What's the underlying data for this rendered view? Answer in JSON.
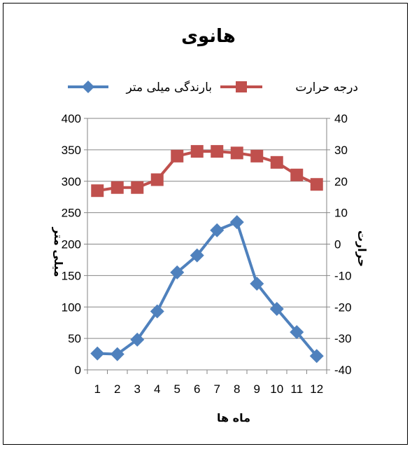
{
  "chart_data": {
    "type": "line",
    "title": "هانوی",
    "xlabel": "ماه ها",
    "ylabel_left": "میلی متر",
    "ylabel_right": "حرارت",
    "categories": [
      "1",
      "2",
      "3",
      "4",
      "5",
      "6",
      "7",
      "8",
      "9",
      "10",
      "11",
      "12"
    ],
    "ylim_left": [
      0,
      400
    ],
    "yticks_left": [
      "0",
      "50",
      "100",
      "150",
      "200",
      "250",
      "300",
      "350",
      "400"
    ],
    "ylim_right": [
      -40,
      40
    ],
    "yticks_right": [
      "-40",
      "-30",
      "-20",
      "-10",
      "0",
      "10",
      "20",
      "30",
      "40"
    ],
    "series": [
      {
        "name": "درجه حرارت",
        "axis": "right",
        "color": "#C0504D",
        "marker": "square",
        "values": [
          17,
          18,
          18,
          20.5,
          28,
          29.5,
          29.5,
          29,
          28,
          26,
          22,
          19
        ]
      },
      {
        "name": "بارندگی میلی متر",
        "axis": "left",
        "color": "#4F81BD",
        "marker": "diamond",
        "values": [
          26,
          25,
          48,
          93,
          155,
          182,
          222,
          235,
          137,
          97,
          60,
          22
        ]
      }
    ],
    "grid": "horizontal",
    "legend_position": "top"
  }
}
